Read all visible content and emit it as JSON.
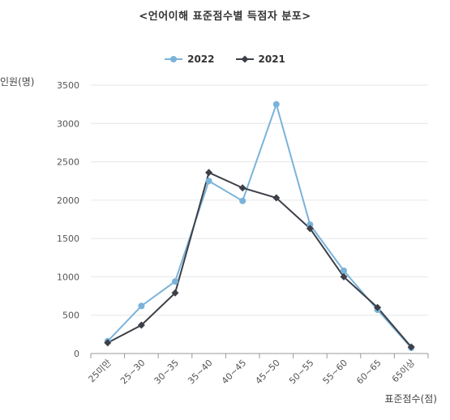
{
  "chart_data": {
    "type": "line",
    "title": "<언어이해 표준점수별 득점자 분포>",
    "ylabel": "인원(명)",
    "xlabel": "표준점수(점)",
    "legend_placement": "top-center",
    "ylim": [
      0,
      3500
    ],
    "yticks": [
      0,
      500,
      1000,
      1500,
      2000,
      2500,
      3000,
      3500
    ],
    "grid": true,
    "categories": [
      "25미만",
      "25~30",
      "30~35",
      "35~40",
      "40~45",
      "45~50",
      "50~55",
      "55~60",
      "60~65",
      "65이상"
    ],
    "series": [
      {
        "name": "2022",
        "color": "#7ab3d9",
        "marker": "circle",
        "values": [
          160,
          620,
          940,
          2250,
          1990,
          3250,
          1680,
          1080,
          570,
          75
        ]
      },
      {
        "name": "2021",
        "color": "#3d4048",
        "marker": "diamond",
        "values": [
          140,
          370,
          790,
          2360,
          2160,
          2030,
          1630,
          1000,
          600,
          85
        ]
      }
    ]
  }
}
